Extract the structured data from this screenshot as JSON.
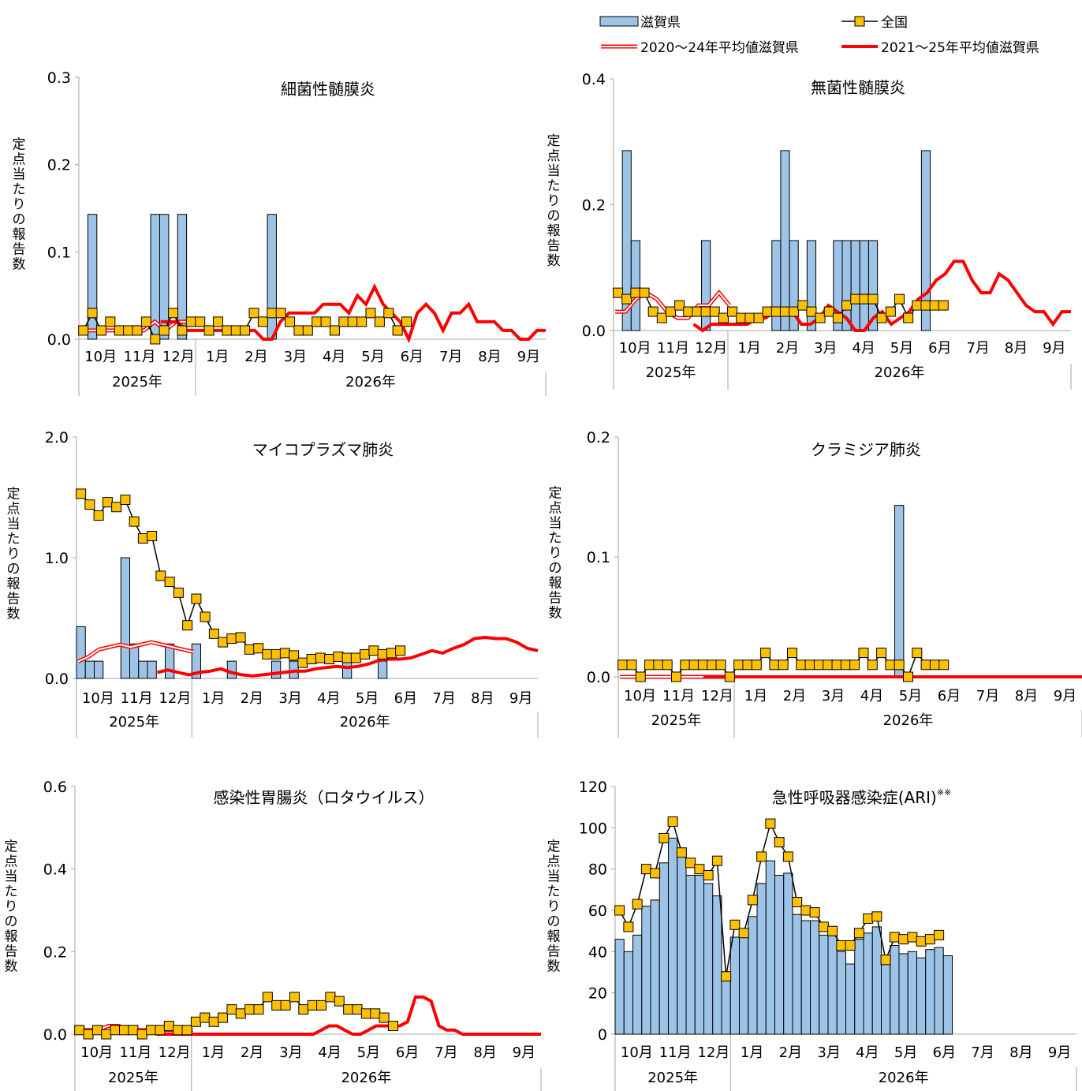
{
  "legend": {
    "shiga": "滋賀県",
    "national": "全国",
    "avg_2020_24": "2020～24年平均値滋賀県",
    "avg_2021_25": "2021～25年平均値滋賀県"
  },
  "colors": {
    "bar_fill": "#9dc3e6",
    "bar_stroke": "#000000",
    "national_marker": "#ffc000",
    "national_line": "#000000",
    "avg_2020_24": "#ff0000",
    "avg_2021_25": "#ff0000",
    "axis": "#a6a6a6"
  },
  "months": [
    "10月",
    "11月",
    "12月",
    "1月",
    "2月",
    "3月",
    "4月",
    "5月",
    "6月",
    "7月",
    "8月",
    "9月"
  ],
  "years": [
    "2025年",
    "2026年"
  ],
  "ylabel": "定点当たりの報告数",
  "chart_data": [
    {
      "type": "bar",
      "title": "細菌性髄膜炎",
      "ylim": [
        0,
        0.3
      ],
      "yticks": [
        "0.0",
        "0.1",
        "0.2",
        "0.3"
      ],
      "ytick_values": [
        0,
        0.1,
        0.2,
        0.3
      ],
      "series": [
        {
          "name": "滋賀県",
          "type": "bar",
          "values": [
            0,
            0.143,
            0,
            0,
            0,
            0,
            0,
            0,
            0.143,
            0.143,
            0,
            0.143,
            0,
            0,
            0,
            0,
            0,
            0,
            0,
            0,
            0,
            0.143,
            0,
            0,
            0,
            0,
            0,
            0,
            0,
            0,
            0,
            0,
            0,
            0,
            0,
            0,
            0,
            0,
            0
          ]
        },
        {
          "name": "全国",
          "type": "line",
          "values": [
            0.01,
            0.03,
            0.01,
            0.02,
            0.01,
            0.01,
            0.01,
            0.02,
            0,
            0.01,
            0.03,
            0.01,
            0.02,
            0.02,
            0.01,
            0.02,
            0.01,
            0.01,
            0.01,
            0.03,
            0.02,
            0.03,
            0.03,
            0.02,
            0.01,
            0.01,
            0.02,
            0.02,
            0.01,
            0.02,
            0.02,
            0.02,
            0.03,
            0.02,
            0.03,
            0.01,
            0.02
          ]
        },
        {
          "name": "2020～24年平均値滋賀県",
          "type": "line",
          "values": [
            0.01,
            0.01,
            0.01,
            0.01,
            0.01,
            0.01,
            0.01,
            0.02,
            0.01,
            0.02,
            0.02,
            0.02
          ]
        },
        {
          "name": "2021～25年平均値滋賀県",
          "type": "line",
          "values": [
            0.02,
            0.02,
            0.02,
            0.01,
            0.01,
            0.01,
            0.01,
            0.01,
            0.01,
            0.01,
            0.01,
            0.01,
            0,
            0,
            0.02,
            0.03,
            0.03,
            0.03,
            0.03,
            0.04,
            0.04,
            0.04,
            0.03,
            0.05,
            0.04,
            0.06,
            0.04,
            0.03,
            0.02,
            0,
            0.03,
            0.04,
            0.03,
            0.01,
            0.03,
            0.03,
            0.04,
            0.02,
            0.02,
            0.02,
            0.01,
            0.01,
            0,
            0,
            0.01,
            0.01
          ]
        }
      ]
    },
    {
      "type": "bar",
      "title": "無菌性髄膜炎",
      "ylim": [
        0,
        0.4
      ],
      "yticks": [
        "0.0",
        "0.2",
        "0.4"
      ],
      "ytick_values": [
        0,
        0.2,
        0.4
      ],
      "series": [
        {
          "name": "滋賀県",
          "type": "bar",
          "values": [
            0,
            0.286,
            0.143,
            0,
            0,
            0,
            0,
            0,
            0,
            0,
            0.143,
            0,
            0,
            0,
            0,
            0,
            0,
            0,
            0.143,
            0.286,
            0.143,
            0,
            0.143,
            0,
            0,
            0.143,
            0.143,
            0.143,
            0.143,
            0.143,
            0,
            0,
            0,
            0,
            0,
            0.286,
            0,
            0,
            0
          ]
        },
        {
          "name": "全国",
          "type": "line",
          "values": [
            0.06,
            0.05,
            0.06,
            0.06,
            0.03,
            0.02,
            0.03,
            0.04,
            0.03,
            0.03,
            0.03,
            0.03,
            0.02,
            0.03,
            0.02,
            0.02,
            0.02,
            0.03,
            0.03,
            0.03,
            0.03,
            0.04,
            0.03,
            0.02,
            0.03,
            0.02,
            0.04,
            0.05,
            0.05,
            0.05,
            0.02,
            0.03,
            0.05,
            0.02,
            0.04,
            0.04,
            0.04,
            0.04
          ]
        },
        {
          "name": "2020～24年平均値滋賀県",
          "type": "line",
          "values": [
            0.03,
            0.03,
            0.05,
            0.06,
            0.05,
            0.03,
            0.02,
            0.02,
            0.04,
            0.04,
            0.06,
            0.04
          ]
        },
        {
          "name": "2021～25年平均値滋賀県",
          "type": "line",
          "values": [
            0.01,
            0,
            0.01,
            0.01,
            0.01,
            0.01,
            0.01,
            0.02,
            0.02,
            0.03,
            0.03,
            0.03,
            0.01,
            0.01,
            0.02,
            0.04,
            0.03,
            0.02,
            0,
            0,
            0.02,
            0.03,
            0.01,
            0.02,
            0.03,
            0.05,
            0.06,
            0.08,
            0.09,
            0.11,
            0.11,
            0.08,
            0.06,
            0.06,
            0.09,
            0.08,
            0.06,
            0.04,
            0.03,
            0.03,
            0.01,
            0.03,
            0.03
          ]
        }
      ]
    },
    {
      "type": "bar",
      "title": "マイコプラズマ肺炎",
      "ylim": [
        0,
        2.0
      ],
      "yticks": [
        "0.0",
        "1.0",
        "2.0"
      ],
      "ytick_values": [
        0,
        1.0,
        2.0
      ],
      "series": [
        {
          "name": "滋賀県",
          "type": "bar",
          "values": [
            0.429,
            0.143,
            0.143,
            0,
            0,
            1.0,
            0.286,
            0.143,
            0.143,
            0,
            0.286,
            0,
            0,
            0.286,
            0,
            0,
            0,
            0.143,
            0,
            0,
            0,
            0,
            0.143,
            0,
            0.143,
            0,
            0,
            0,
            0,
            0,
            0.143,
            0,
            0,
            0,
            0.143,
            0,
            0,
            0,
            0
          ]
        },
        {
          "name": "全国",
          "type": "line",
          "values": [
            1.53,
            1.44,
            1.35,
            1.46,
            1.42,
            1.48,
            1.3,
            1.16,
            1.18,
            0.85,
            0.8,
            0.71,
            0.44,
            0.66,
            0.51,
            0.37,
            0.3,
            0.33,
            0.34,
            0.24,
            0.25,
            0.2,
            0.2,
            0.21,
            0.19,
            0.13,
            0.16,
            0.17,
            0.16,
            0.18,
            0.17,
            0.17,
            0.2,
            0.23,
            0.2,
            0.21,
            0.23
          ]
        },
        {
          "name": "2020～24年平均値滋賀県",
          "type": "line",
          "values": [
            0.14,
            0.18,
            0.24,
            0.26,
            0.28,
            0.26,
            0.28,
            0.3,
            0.28,
            0.26,
            0.24,
            0.22
          ]
        },
        {
          "name": "2021～25年平均値滋賀県",
          "type": "line",
          "values": [
            0.05,
            0.07,
            0.05,
            0.03,
            0.05,
            0.06,
            0.08,
            0.05,
            0.03,
            0.02,
            0.03,
            0.04,
            0.05,
            0.06,
            0.06,
            0.08,
            0.09,
            0.1,
            0.09,
            0.1,
            0.12,
            0.15,
            0.16,
            0.16,
            0.17,
            0.2,
            0.23,
            0.21,
            0.25,
            0.28,
            0.33,
            0.34,
            0.33,
            0.33,
            0.3,
            0.25,
            0.23
          ]
        }
      ]
    },
    {
      "type": "bar",
      "title": "クラミジア肺炎",
      "ylim": [
        0,
        0.2
      ],
      "yticks": [
        "0.0",
        "0.1",
        "0.2"
      ],
      "ytick_values": [
        0,
        0.1,
        0.2
      ],
      "series": [
        {
          "name": "滋賀県",
          "type": "bar",
          "values": [
            0,
            0,
            0,
            0,
            0,
            0,
            0,
            0,
            0,
            0,
            0,
            0,
            0,
            0,
            0,
            0,
            0,
            0,
            0,
            0,
            0,
            0,
            0,
            0,
            0,
            0,
            0,
            0,
            0,
            0,
            0,
            0.143,
            0,
            0,
            0,
            0,
            0,
            0,
            0
          ]
        },
        {
          "name": "全国",
          "type": "line",
          "values": [
            0.01,
            0.01,
            0,
            0.01,
            0.01,
            0.01,
            0,
            0.01,
            0.01,
            0.01,
            0.01,
            0.01,
            0,
            0.01,
            0.01,
            0.01,
            0.02,
            0.01,
            0.01,
            0.02,
            0.01,
            0.01,
            0.01,
            0.01,
            0.01,
            0.01,
            0.01,
            0.02,
            0.01,
            0.02,
            0.01,
            0.01,
            0,
            0.02,
            0.01,
            0.01,
            0.01
          ]
        },
        {
          "name": "2020～24年平均値滋賀県",
          "type": "line",
          "values": [
            0,
            0,
            0,
            0,
            0,
            0,
            0,
            0,
            0,
            0,
            0,
            0
          ]
        },
        {
          "name": "2021～25年平均値滋賀県",
          "type": "line",
          "values": [
            0,
            0,
            0,
            0,
            0,
            0,
            0,
            0,
            0,
            0,
            0,
            0,
            0,
            0,
            0,
            0,
            0,
            0,
            0,
            0,
            0,
            0,
            0,
            0,
            0,
            0,
            0,
            0,
            0,
            0,
            0,
            0,
            0,
            0,
            0,
            0,
            0,
            0,
            0,
            0,
            0,
            0,
            0,
            0,
            0,
            0
          ]
        }
      ]
    },
    {
      "type": "bar",
      "title": "感染性胃腸炎（ロタウイルス）",
      "ylim": [
        0,
        0.6
      ],
      "yticks": [
        "0.0",
        "0.2",
        "0.4",
        "0.6"
      ],
      "ytick_values": [
        0,
        0.2,
        0.4,
        0.6
      ],
      "series": [
        {
          "name": "滋賀県",
          "type": "bar",
          "values": [
            0,
            0,
            0,
            0,
            0,
            0,
            0,
            0,
            0,
            0,
            0,
            0,
            0,
            0,
            0,
            0,
            0,
            0,
            0,
            0,
            0,
            0,
            0,
            0,
            0,
            0,
            0,
            0,
            0,
            0,
            0,
            0,
            0,
            0,
            0,
            0,
            0,
            0,
            0
          ]
        },
        {
          "name": "全国",
          "type": "line",
          "values": [
            0.01,
            0,
            0.01,
            0,
            0.01,
            0.01,
            0.01,
            0,
            0.01,
            0.01,
            0.02,
            0.01,
            0.01,
            0.03,
            0.04,
            0.03,
            0.04,
            0.06,
            0.05,
            0.06,
            0.06,
            0.09,
            0.07,
            0.07,
            0.09,
            0.06,
            0.07,
            0.07,
            0.09,
            0.08,
            0.06,
            0.06,
            0.05,
            0.05,
            0.04,
            0.02
          ]
        },
        {
          "name": "2020～24年平均値滋賀県",
          "type": "line",
          "values": [
            0.01,
            0.01,
            0.01,
            0.02,
            0.02,
            0.01,
            0.01,
            0.01,
            0.01,
            0.01,
            0.01,
            0.01
          ]
        },
        {
          "name": "2021～25年平均値滋賀県",
          "type": "line",
          "values": [
            0,
            0,
            0,
            0,
            0,
            0,
            0,
            0,
            0,
            0,
            0,
            0,
            0,
            0,
            0,
            0,
            0,
            0,
            0,
            0,
            0,
            0.01,
            0.02,
            0.02,
            0.01,
            0,
            0,
            0.01,
            0.02,
            0.02,
            0.02,
            0.02,
            0.03,
            0.09,
            0.09,
            0.08,
            0.02,
            0.01,
            0.01,
            0,
            0,
            0,
            0,
            0,
            0,
            0,
            0,
            0,
            0,
            0
          ]
        }
      ]
    },
    {
      "type": "bar",
      "title": "急性呼吸器感染症(ARI)",
      "title_note": "※※",
      "ylim": [
        0,
        120
      ],
      "yticks": [
        "0",
        "20",
        "40",
        "60",
        "80",
        "100",
        "120"
      ],
      "ytick_values": [
        0,
        20,
        40,
        60,
        80,
        100,
        120
      ],
      "series": [
        {
          "name": "滋賀県",
          "type": "bar",
          "values": [
            46,
            40,
            48,
            62,
            65,
            83,
            95,
            88,
            77,
            77,
            73,
            67,
            28,
            47,
            48,
            57,
            73,
            84,
            77,
            78,
            58,
            55,
            55,
            48,
            48,
            40,
            34,
            46,
            49,
            52,
            35,
            43,
            39,
            40,
            37,
            41,
            42,
            38
          ]
        },
        {
          "name": "全国",
          "type": "line",
          "values": [
            60,
            52,
            63,
            80,
            78,
            95,
            103,
            88,
            83,
            80,
            77,
            84,
            28,
            53,
            49,
            65,
            86,
            102,
            93,
            86,
            64,
            60,
            59,
            52,
            50,
            43,
            43,
            49,
            56,
            57,
            36,
            47,
            46,
            47,
            45,
            46,
            48
          ]
        }
      ]
    }
  ]
}
